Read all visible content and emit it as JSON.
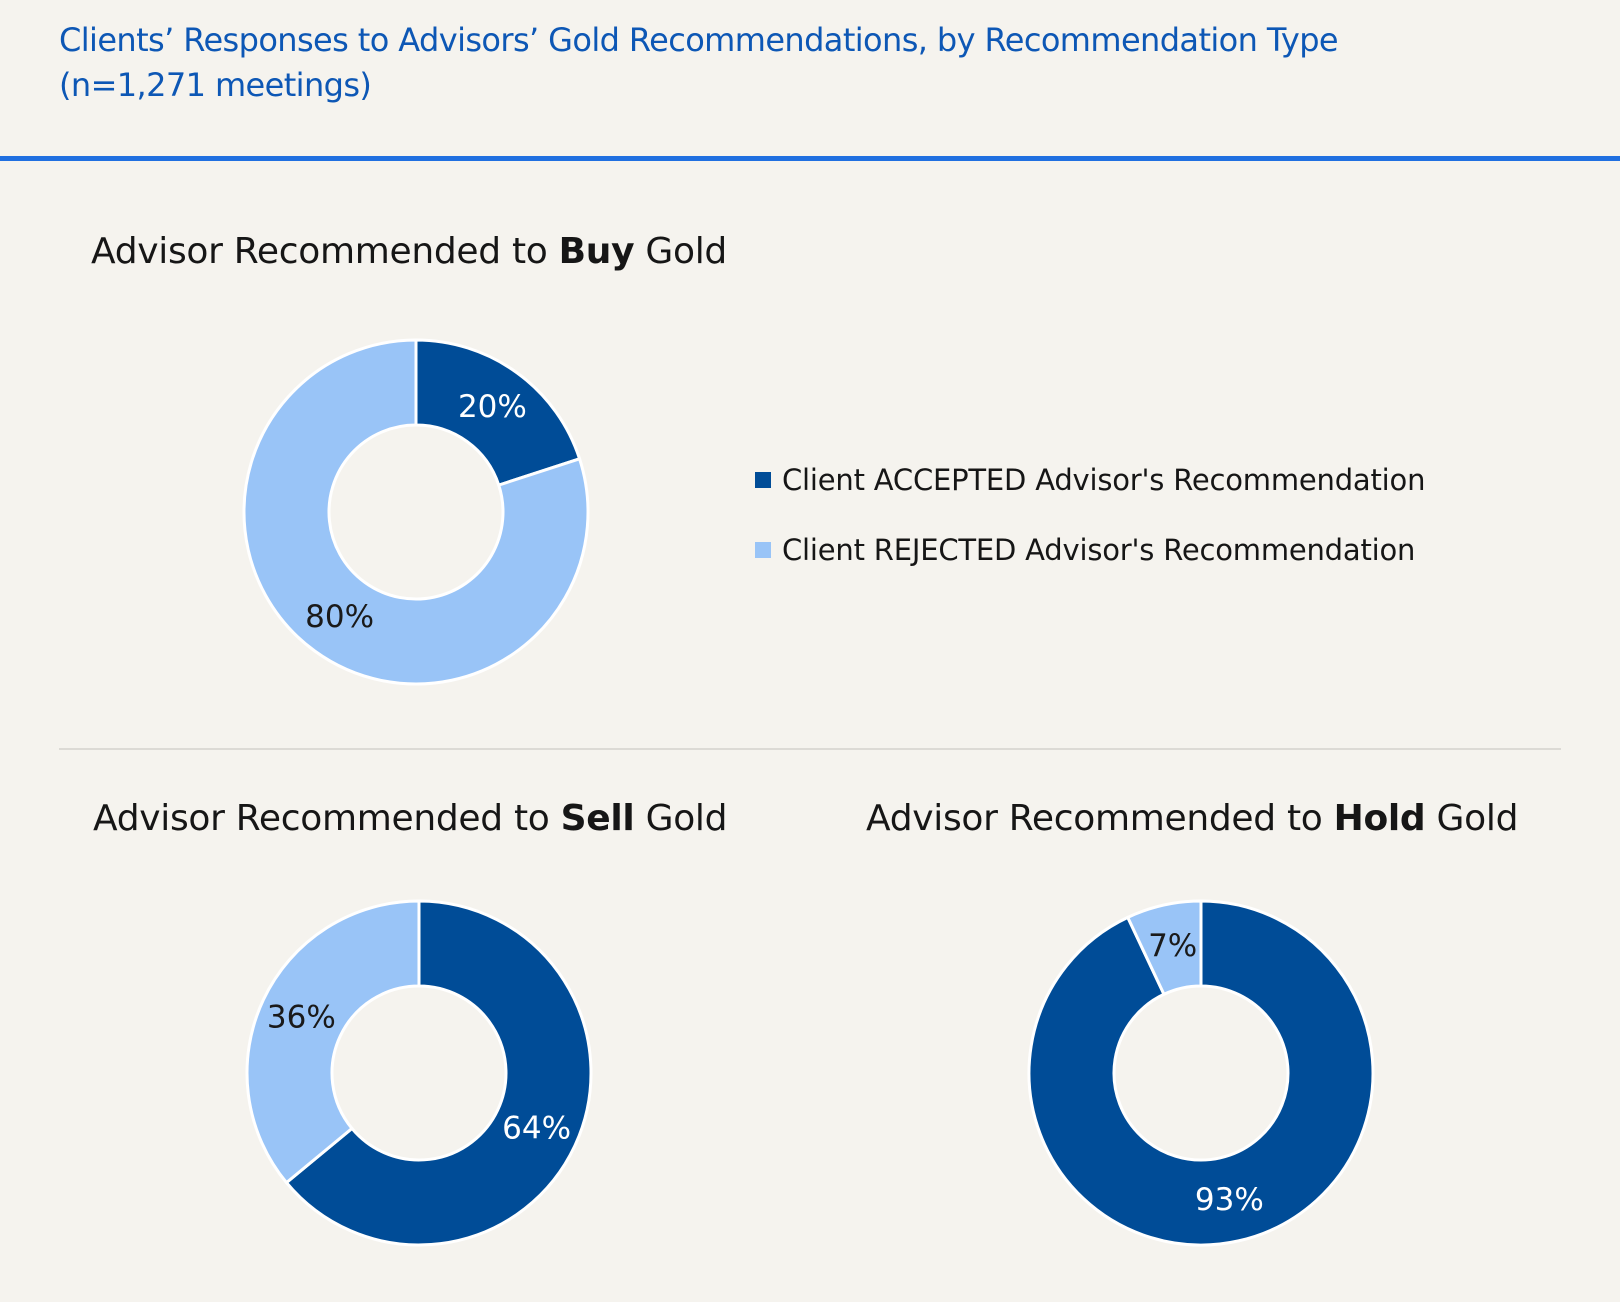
{
  "title": {
    "line1": "Clients’ Responses to Advisors’ Gold Recommendations, by Recommendation Type",
    "line2": "(n=1,271 meetings)"
  },
  "colors": {
    "accepted": "#004c97",
    "rejected": "#99c4f7",
    "accepted_label_text": "#ffffff",
    "rejected_label_text": "#1a1a1a",
    "background": "#f5f3ee",
    "title": "#0d57b5",
    "rule": "#1f6fe0"
  },
  "legend": {
    "placement": "right of top chart",
    "items": [
      {
        "label": "Client ACCEPTED Advisor's Recommendation",
        "color": "#004c97"
      },
      {
        "label": "Client REJECTED Advisor's Recommendation",
        "color": "#99c4f7"
      }
    ]
  },
  "chart_data": [
    {
      "type": "pie",
      "style": "donut",
      "title_prefix": "Advisor Recommended to ",
      "title_bold": "Buy",
      "title_suffix": " Gold",
      "slices": [
        {
          "name": "Client ACCEPTED Advisor's Recommendation",
          "value": 20,
          "label": "20%"
        },
        {
          "name": "Client REJECTED Advisor's Recommendation",
          "value": 80,
          "label": "80%"
        }
      ]
    },
    {
      "type": "pie",
      "style": "donut",
      "title_prefix": "Advisor Recommended to ",
      "title_bold": "Sell",
      "title_suffix": " Gold",
      "slices": [
        {
          "name": "Client ACCEPTED Advisor's Recommendation",
          "value": 64,
          "label": "64%"
        },
        {
          "name": "Client REJECTED Advisor's Recommendation",
          "value": 36,
          "label": "36%"
        }
      ]
    },
    {
      "type": "pie",
      "style": "donut",
      "title_prefix": "Advisor Recommended to ",
      "title_bold": "Hold",
      "title_suffix": " Gold",
      "slices": [
        {
          "name": "Client ACCEPTED Advisor's Recommendation",
          "value": 93,
          "label": "93%"
        },
        {
          "name": "Client REJECTED Advisor's Recommendation",
          "value": 7,
          "label": "7%"
        }
      ]
    }
  ]
}
